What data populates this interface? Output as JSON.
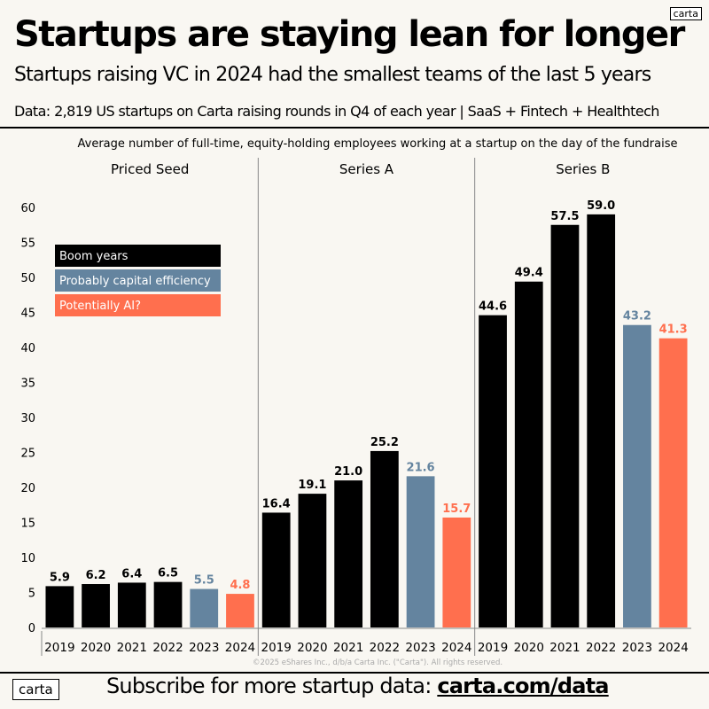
{
  "title": "Startups are staying lean for longer",
  "subtitle": "Startups raising VC in 2024 had the smallest teams of the last 5 years",
  "data_note": "Data: 2,819 US startups on Carta raising rounds in Q4 of each year | SaaS + Fintech + Healthtech",
  "logo_text": "carta",
  "footer": {
    "subscribe_text": "Subscribe for more startup data: ",
    "link": "carta.com/data",
    "copyright": "©2025 eShares Inc., d/b/a Carta Inc. (\"Carta\"). All rights reserved."
  },
  "colors": {
    "boom": "#000000",
    "efficiency": "#64849f",
    "ai": "#ff6f4e"
  },
  "chart_data": {
    "type": "bar",
    "title": "Average number of full-time, equity-holding employees working at a startup on the day of the fundraise",
    "categories": [
      "2019",
      "2020",
      "2021",
      "2022",
      "2023",
      "2024"
    ],
    "ylim": [
      0,
      65
    ],
    "yticks": [
      0,
      5,
      10,
      15,
      20,
      25,
      30,
      35,
      40,
      45,
      50,
      55,
      60
    ],
    "grid": false,
    "legend_placement": "top-left",
    "legend": [
      {
        "label": "Boom years",
        "years": [
          "2019",
          "2020",
          "2021",
          "2022"
        ],
        "color": "#000000"
      },
      {
        "label": "Probably capital efficiency",
        "years": [
          "2023"
        ],
        "color": "#64849f"
      },
      {
        "label": "Potentially AI?",
        "years": [
          "2024"
        ],
        "color": "#ff6f4e"
      }
    ],
    "panels": [
      {
        "name": "Priced Seed",
        "values": [
          5.9,
          6.2,
          6.4,
          6.5,
          5.5,
          4.8
        ],
        "labels": [
          "5.9",
          "6.2",
          "6.4",
          "6.5",
          "5.5",
          "4.8"
        ]
      },
      {
        "name": "Series A",
        "values": [
          16.4,
          19.1,
          21.0,
          25.2,
          21.6,
          15.7
        ],
        "labels": [
          "16.4",
          "19.1",
          "21.0",
          "25.2",
          "21.6",
          "15.7"
        ]
      },
      {
        "name": "Series B",
        "values": [
          44.6,
          49.4,
          57.5,
          59.0,
          43.2,
          41.3
        ],
        "labels": [
          "44.6",
          "49.4",
          "57.5",
          "59.0",
          "43.2",
          "41.3"
        ]
      }
    ]
  }
}
